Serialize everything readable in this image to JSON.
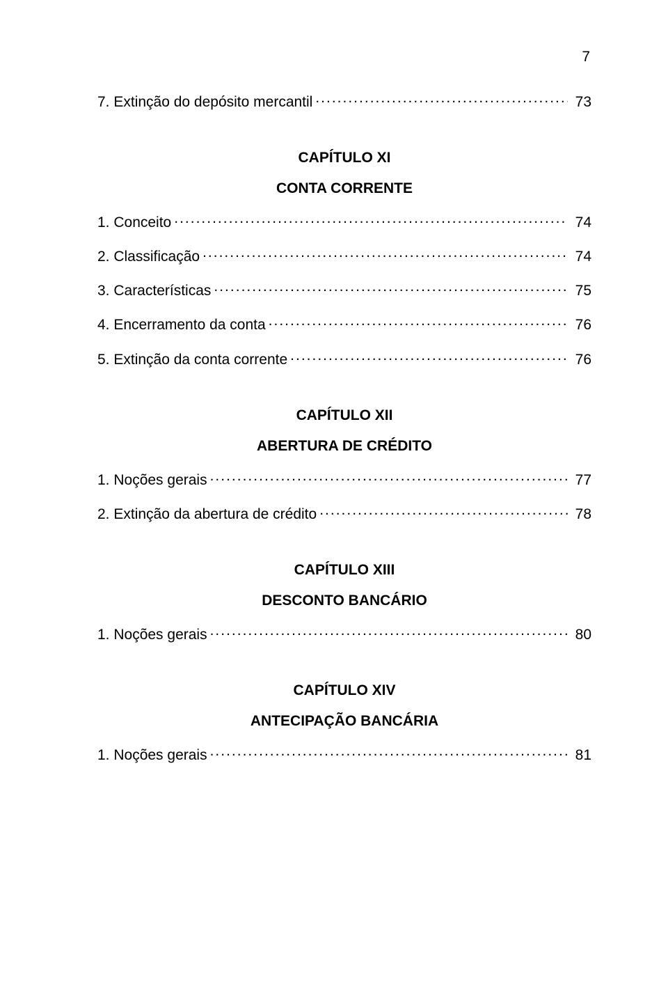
{
  "page_number": "7",
  "typography": {
    "body_fontsize_pt": 16,
    "font_family": "Arial",
    "color": "#000000"
  },
  "background_color": "#ffffff",
  "sections": [
    {
      "leading_entries": [
        {
          "label": "7. Extinção do depósito mercantil",
          "page": "73"
        }
      ],
      "chapter": "CAPÍTULO XI",
      "title": "CONTA CORRENTE",
      "entries": [
        {
          "label": "1. Conceito",
          "page": "74"
        },
        {
          "label": "2. Classificação",
          "page": "74"
        },
        {
          "label": "3. Características",
          "page": "75"
        },
        {
          "label": "4. Encerramento da conta",
          "page": "76"
        },
        {
          "label": "5. Extinção da conta corrente",
          "page": "76"
        }
      ]
    },
    {
      "chapter": "CAPÍTULO XII",
      "title": "ABERTURA DE CRÉDITO",
      "entries": [
        {
          "label": "1. Noções gerais",
          "page": "77"
        },
        {
          "label": "2. Extinção da abertura de crédito",
          "page": "78"
        }
      ]
    },
    {
      "chapter": "CAPÍTULO XIII",
      "title": "DESCONTO BANCÁRIO",
      "entries": [
        {
          "label": "1. Noções gerais",
          "page": "80"
        }
      ]
    },
    {
      "chapter": "CAPÍTULO XIV",
      "title": "ANTECIPAÇÃO BANCÁRIA",
      "entries": [
        {
          "label": "1. Noções gerais",
          "page": "81"
        }
      ]
    }
  ]
}
